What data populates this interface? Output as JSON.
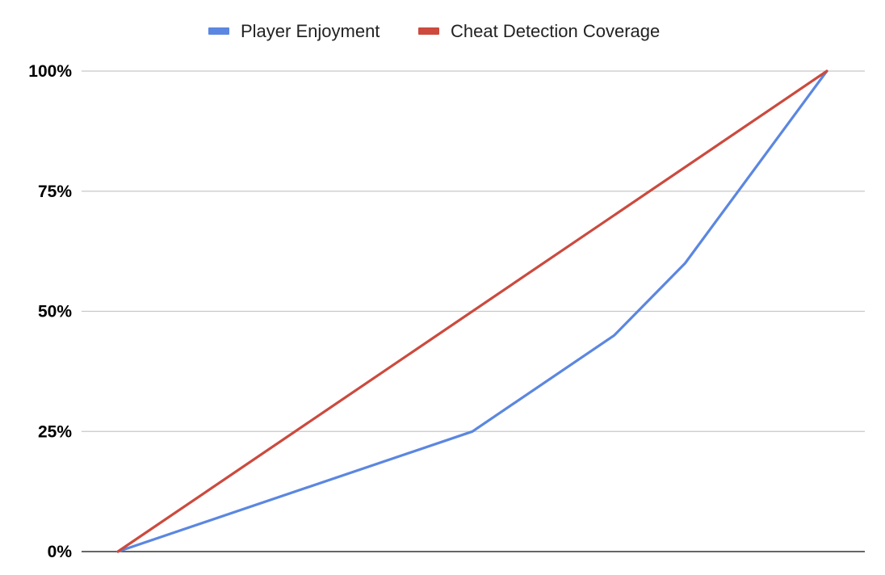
{
  "chart_data": {
    "type": "line",
    "title": "",
    "xlabel": "",
    "ylabel": "",
    "ylim": [
      0,
      1
    ],
    "xlim": [
      0,
      1
    ],
    "y_ticks": [
      "0%",
      "25%",
      "50%",
      "75%",
      "100%"
    ],
    "y_tick_values": [
      0,
      0.25,
      0.5,
      0.75,
      1
    ],
    "grid": true,
    "legend_position": "top",
    "series": [
      {
        "name": "Player Enjoyment",
        "color": "#5b87e0",
        "points": [
          {
            "x": 0,
            "y": 0
          },
          {
            "x": 0.5,
            "y": 0.25
          },
          {
            "x": 0.7,
            "y": 0.45
          },
          {
            "x": 0.8,
            "y": 0.6
          },
          {
            "x": 1,
            "y": 1
          }
        ]
      },
      {
        "name": "Cheat Detection Coverage",
        "color": "#cc4a3e",
        "points": [
          {
            "x": 0,
            "y": 0
          },
          {
            "x": 1,
            "y": 1
          }
        ]
      }
    ]
  }
}
